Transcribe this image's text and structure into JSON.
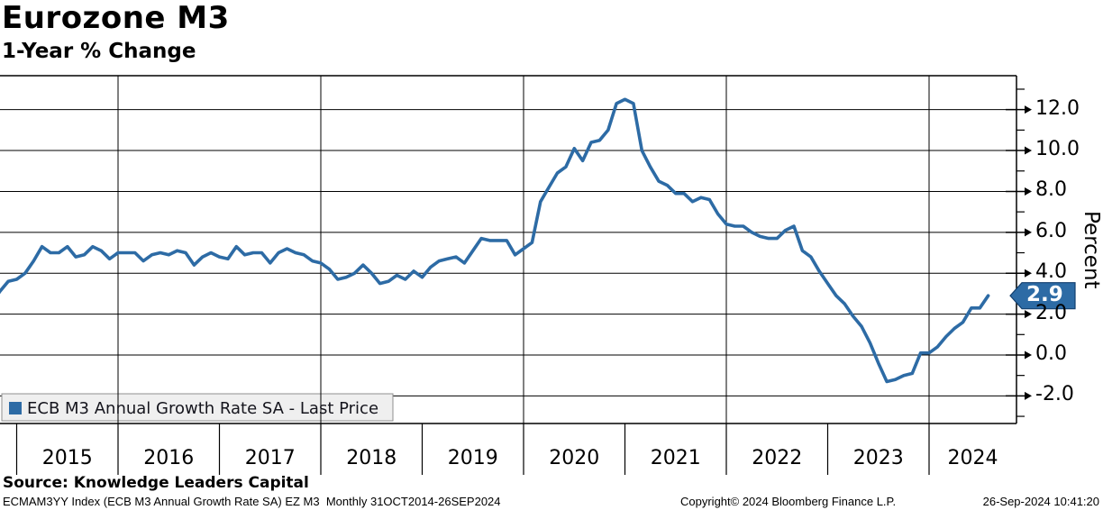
{
  "header": {
    "title": "Eurozone M3",
    "subtitle": "1-Year % Change"
  },
  "legend": {
    "label": "ECB M3 Annual Growth Rate SA - Last Price",
    "marker_color": "#2d6ba5"
  },
  "y_axis": {
    "title": "Percent"
  },
  "last_price_badge": {
    "label": "2.9",
    "fill": "#2d6ba5",
    "border": "#123f6e"
  },
  "source_line": "Source: Knowledge Leaders Capital",
  "footer": {
    "left": "ECMAM3YY Index (ECB M3 Annual Growth Rate SA) EZ M3  Monthly 31OCT2014-26SEP2024",
    "center": "Copyright© 2024 Bloomberg Finance L.P.",
    "right": "26-Sep-2024 10:41:20"
  },
  "chart_data": {
    "type": "line",
    "title": "Eurozone M3",
    "subtitle": "1-Year % Change",
    "ylabel": "Percent",
    "ylabel_side": "right",
    "ylim": [
      -3.35,
      13.66
    ],
    "y_major_ticks": [
      -2,
      0,
      2,
      4,
      6,
      8,
      10,
      12
    ],
    "y_major_tick_labels": [
      "-2.0",
      "0.0",
      "2.0",
      "4.0",
      "6.0",
      "8.0",
      "10.0",
      "12.0"
    ],
    "y_minor_ticks": [
      -3,
      -1,
      1,
      3,
      5,
      7,
      9,
      11,
      13
    ],
    "x_year_labels": [
      "2015",
      "2016",
      "2017",
      "2018",
      "2019",
      "2020",
      "2021",
      "2022",
      "2023",
      "2024"
    ],
    "x_gridline_years": [
      2016,
      2018,
      2020,
      2022,
      2024
    ],
    "grid": true,
    "legend_position": "bottom-left",
    "frequency": "monthly",
    "start": "2014-10",
    "end": "2024-08",
    "last_price": 2.9,
    "line_color": "#2d6ba5",
    "series": [
      {
        "name": "ECB M3 Annual Growth Rate SA",
        "values": [
          2.5,
          3.1,
          3.6,
          3.7,
          4.0,
          4.6,
          5.3,
          5.0,
          5.0,
          5.3,
          4.8,
          4.9,
          5.3,
          5.1,
          4.7,
          5.0,
          5.0,
          5.0,
          4.6,
          4.9,
          5.0,
          4.9,
          5.1,
          5.0,
          4.4,
          4.8,
          5.0,
          4.8,
          4.7,
          5.3,
          4.9,
          5.0,
          5.0,
          4.5,
          5.0,
          5.2,
          5.0,
          4.9,
          4.6,
          4.5,
          4.2,
          3.7,
          3.8,
          4.0,
          4.4,
          4.0,
          3.5,
          3.6,
          3.9,
          3.7,
          4.1,
          3.8,
          4.3,
          4.6,
          4.7,
          4.8,
          4.5,
          5.1,
          5.7,
          5.6,
          5.6,
          5.6,
          4.9,
          5.2,
          5.5,
          7.5,
          8.2,
          8.9,
          9.2,
          10.1,
          9.5,
          10.4,
          10.5,
          11.0,
          12.3,
          12.5,
          12.3,
          10.0,
          9.2,
          8.5,
          8.3,
          7.9,
          7.9,
          7.5,
          7.7,
          7.6,
          6.9,
          6.4,
          6.3,
          6.3,
          6.0,
          5.8,
          5.7,
          5.7,
          6.1,
          6.3,
          5.1,
          4.8,
          4.1,
          3.5,
          2.9,
          2.5,
          1.9,
          1.4,
          0.6,
          -0.4,
          -1.3,
          -1.2,
          -1.0,
          -0.9,
          0.1,
          0.1,
          0.4,
          0.9,
          1.3,
          1.6,
          2.3,
          2.3,
          2.9
        ]
      }
    ]
  }
}
